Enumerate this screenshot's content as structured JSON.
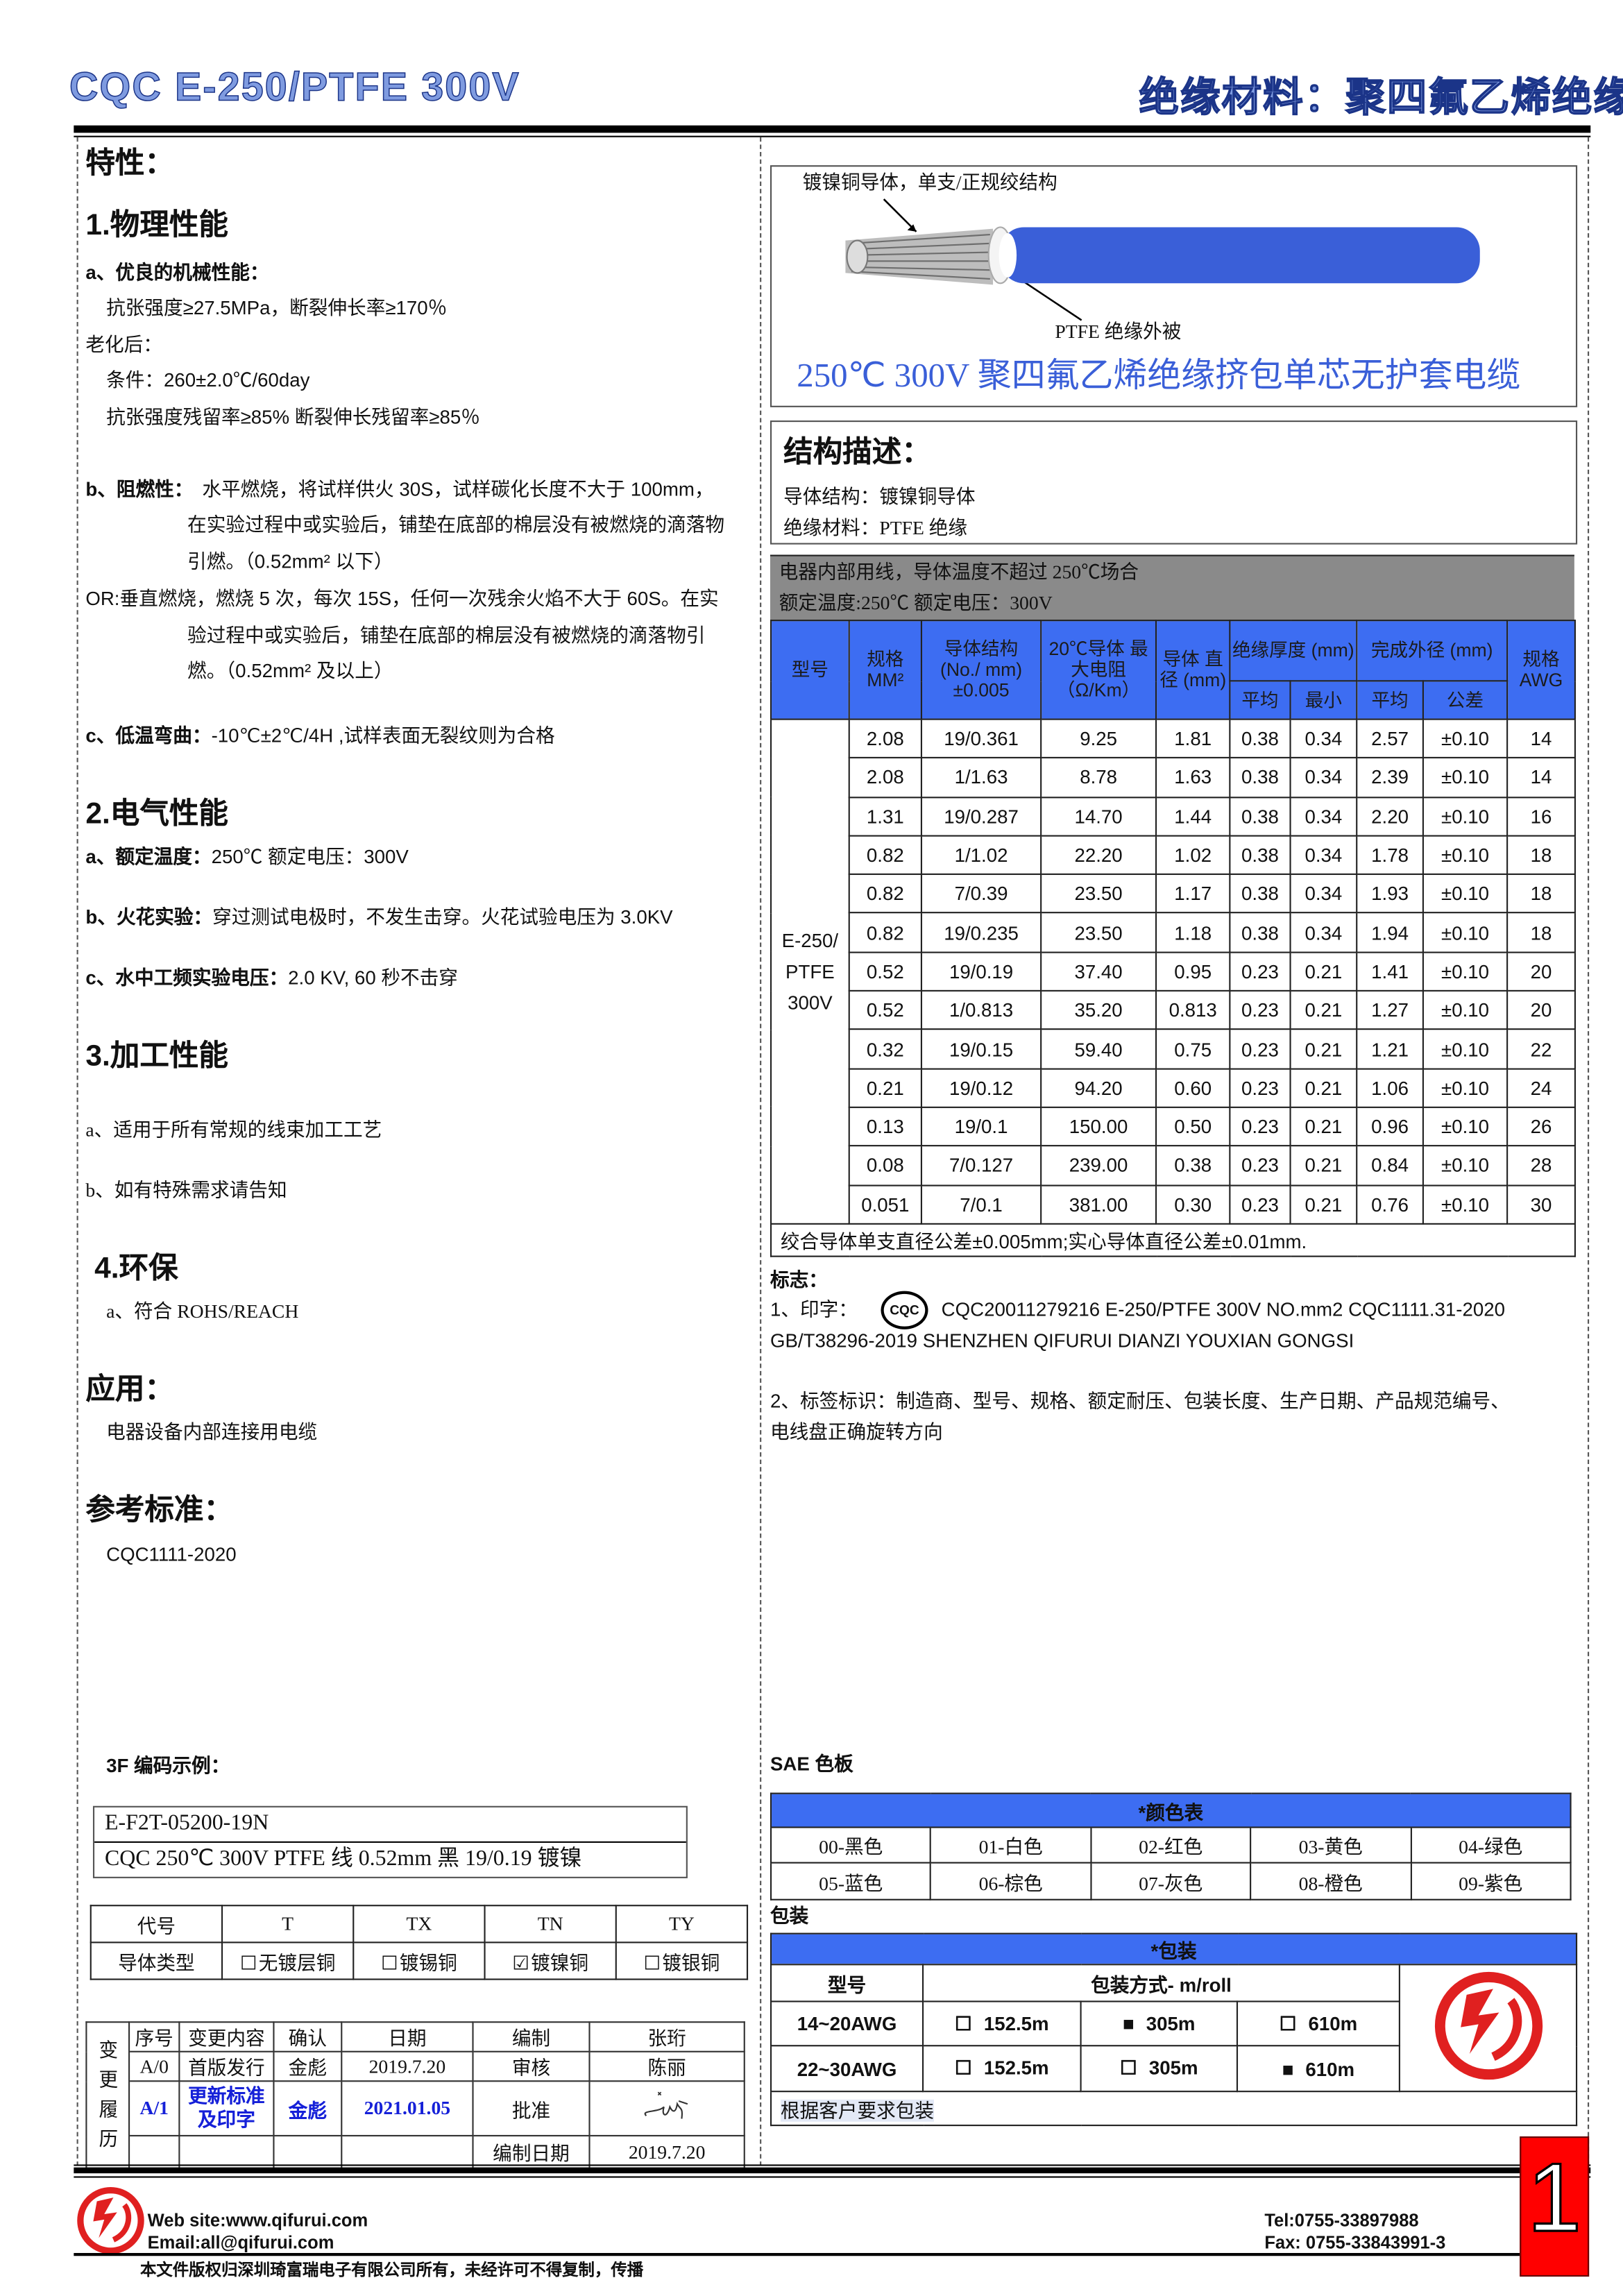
{
  "header": {
    "title": "CQC E-250/PTFE 300V",
    "category": "绝缘材料：聚四氟乙烯绝缘"
  },
  "left": {
    "features_title": "特性：",
    "physical": {
      "title": "1.物理性能",
      "a_label": "a、优良的机械性能：",
      "a_line": "抗张强度≥27.5MPa，断裂伸长率≥170％",
      "aging_label": "老化后：",
      "aging_condition": "条件：260±2.0℃/60day",
      "aging_result": "抗张强度残留率≥85%  断裂伸长残留率≥85％",
      "b_label": "b、阻燃性：",
      "b_line1": "水平燃烧，将试样供火 30S，试样碳化长度不大于 100mm，",
      "b_line2": "在实验过程中或实验后，铺垫在底部的棉层没有被燃烧的滴落物",
      "b_line3": "引燃。（0.52mm² 以下）",
      "or_line1": "OR:垂直燃烧，燃烧 5 次，每次 15S，任何一次残余火焰不大于 60S。在实",
      "or_line2": "验过程中或实验后，铺垫在底部的棉层没有被燃烧的滴落物引",
      "or_line3": "燃。（0.52mm² 及以上）",
      "c_label": "c、低温弯曲：",
      "c_text": "-10℃±2℃/4H ,试样表面无裂纹则为合格"
    },
    "electrical": {
      "title": "2.电气性能",
      "a_label": "a、额定温度：",
      "a_text": "250℃    额定电压：300V",
      "b_label": "b、火花实验：",
      "b_text": "穿过测试电极时，不发生击穿。火花试验电压为 3.0KV",
      "c_label": "c、水中工频实验电压：",
      "c_text": "2.0 KV, 60 秒不击穿"
    },
    "processing": {
      "title": "3.加工性能",
      "a": "a、适用于所有常规的线束加工工艺",
      "b": "b、如有特殊需求请告知"
    },
    "environment": {
      "title": "4.环保",
      "a": "a、符合 ROHS/REACH"
    },
    "application": {
      "title": "应用：",
      "text": "电器设备内部连接用电缆"
    },
    "standard": {
      "title": "参考标准：",
      "text": "CQC1111-2020"
    },
    "code_example": {
      "title": "3F 编码示例：",
      "code": "E-F2T-05200-19N",
      "desc": "CQC 250℃  300V PTFE 线  0.52mm  黑 19/0.19 镀镍"
    },
    "conductor_codes": {
      "header": [
        "代号",
        "T",
        "TX",
        "TN",
        "TY"
      ],
      "row_label": "导体类型",
      "options": [
        {
          "label": "无镀层铜",
          "checked": false
        },
        {
          "label": "镀锡铜",
          "checked": false
        },
        {
          "label": "镀镍铜",
          "checked": true
        },
        {
          "label": "镀银铜",
          "checked": false
        }
      ]
    },
    "change_history": {
      "side_label": "变更履历",
      "headers": [
        "序号",
        "变更内容",
        "确认",
        "日期",
        "编制",
        "张珩"
      ],
      "row1": [
        "A/0",
        "首版发行",
        "金彪",
        "2019.7.20",
        "审核",
        "陈丽"
      ],
      "row2": [
        "A/1",
        "更新标准及印字",
        "金彪",
        "2021.01.05",
        "批准"
      ],
      "compile_date_label": "编制日期",
      "compile_date": "2019.7.20"
    }
  },
  "right": {
    "image": {
      "conductor_label": "镀镍铜导体，单支/正规绞结构",
      "insulation_label": "PTFE 绝缘外被",
      "title": "250℃  300V 聚四氟乙烯绝缘挤包单芯无护套电缆",
      "insulation_color": "#3a5fd8"
    },
    "structure": {
      "title": "结构描述：",
      "conductor": "导体结构：镀镍铜导体",
      "insulation": "绝缘材料：PTFE 绝缘"
    },
    "usage": {
      "line1": "电器内部用线，导体温度不超过 250℃场合",
      "line2": "额定温度:250℃  额定电压：300V"
    },
    "spec_table": {
      "headers": {
        "model": "型号",
        "size": "规格 MM²",
        "structure": "导体结构 (No./ mm) ±0.005",
        "resistance": "20℃导体 最大电阻 （Ω/Km）",
        "diameter": "导体 直径 (mm)",
        "insulation": "绝缘厚度 (mm)",
        "outer": "完成外径 (mm)",
        "awg": "规格 AWG",
        "avg": "平均",
        "min": "最小",
        "tol": "公差"
      },
      "model": "E-250/ PTFE 300V",
      "rows": [
        [
          "2.08",
          "19/0.361",
          "9.25",
          "1.81",
          "0.38",
          "0.34",
          "2.57",
          "±0.10",
          "14"
        ],
        [
          "2.08",
          "1/1.63",
          "8.78",
          "1.63",
          "0.38",
          "0.34",
          "2.39",
          "±0.10",
          "14"
        ],
        [
          "1.31",
          "19/0.287",
          "14.70",
          "1.44",
          "0.38",
          "0.34",
          "2.20",
          "±0.10",
          "16"
        ],
        [
          "0.82",
          "1/1.02",
          "22.20",
          "1.02",
          "0.38",
          "0.34",
          "1.78",
          "±0.10",
          "18"
        ],
        [
          "0.82",
          "7/0.39",
          "23.50",
          "1.17",
          "0.38",
          "0.34",
          "1.93",
          "±0.10",
          "18"
        ],
        [
          "0.82",
          "19/0.235",
          "23.50",
          "1.18",
          "0.38",
          "0.34",
          "1.94",
          "±0.10",
          "18"
        ],
        [
          "0.52",
          "19/0.19",
          "37.40",
          "0.95",
          "0.23",
          "0.21",
          "1.41",
          "±0.10",
          "20"
        ],
        [
          "0.52",
          "1/0.813",
          "35.20",
          "0.813",
          "0.23",
          "0.21",
          "1.27",
          "±0.10",
          "20"
        ],
        [
          "0.32",
          "19/0.15",
          "59.40",
          "0.75",
          "0.23",
          "0.21",
          "1.21",
          "±0.10",
          "22"
        ],
        [
          "0.21",
          "19/0.12",
          "94.20",
          "0.60",
          "0.23",
          "0.21",
          "1.06",
          "±0.10",
          "24"
        ],
        [
          "0.13",
          "19/0.1",
          "150.00",
          "0.50",
          "0.23",
          "0.21",
          "0.96",
          "±0.10",
          "26"
        ],
        [
          "0.08",
          "7/0.127",
          "239.00",
          "0.38",
          "0.23",
          "0.21",
          "0.84",
          "±0.10",
          "28"
        ],
        [
          "0.051",
          "7/0.1",
          "381.00",
          "0.30",
          "0.23",
          "0.21",
          "0.76",
          "±0.10",
          "30"
        ]
      ],
      "note": "绞合导体单支直径公差±0.005mm;实心导体直径公差±0.01mm."
    },
    "marking": {
      "title": "标志：",
      "print_label": "1、印字：",
      "cqc_logo": "CQC",
      "print_line1": "CQC20011279216  E-250/PTFE   300V   NO.mm2   CQC1111.31-2020",
      "print_line2": "GB/T38296-2019 SHENZHEN QIFURUI DIANZI YOUXIAN GONGSI",
      "label_line1": "2、标签标识：制造商、型号、规格、额定耐压、包装长度、生产日期、产品规范编号、",
      "label_line2": "电线盘正确旋转方向"
    },
    "colors": {
      "title": "SAE 色板",
      "header": "*颜色表",
      "items": [
        "00-黑色",
        "01-白色",
        "02-红色",
        "03-黄色",
        "04-绿色",
        "05-蓝色",
        "06-棕色",
        "07-灰色",
        "08-橙色",
        "09-紫色"
      ]
    },
    "packaging": {
      "title": "包装",
      "header": "*包装",
      "model_label": "型号",
      "method_label": "包装方式- m/roll",
      "rows": [
        {
          "model": "14~20AWG",
          "options": [
            {
              "label": "152.5m",
              "selected": false
            },
            {
              "label": "305m",
              "selected": true
            },
            {
              "label": "610m",
              "selected": false
            }
          ]
        },
        {
          "model": "22~30AWG",
          "options": [
            {
              "label": "152.5m",
              "selected": false
            },
            {
              "label": "305m",
              "selected": false
            },
            {
              "label": "610m",
              "selected": true
            }
          ]
        }
      ],
      "note": "根据客户要求包装"
    }
  },
  "footer": {
    "website": "Web site:www.qifurui.com",
    "email": "Email:all@qifurui.com",
    "tel": "Tel:0755-33897988",
    "fax": "Fax: 0755-33843991-3",
    "copyright": "本文件版权归深圳琦富瑞电子有限公司所有，未经许可不得复制，传播",
    "page_number": "1"
  },
  "theme": {
    "table_header_blue": "#3d6df2",
    "usage_gray": "#8a8a8a",
    "brand_red": "#e02020"
  }
}
